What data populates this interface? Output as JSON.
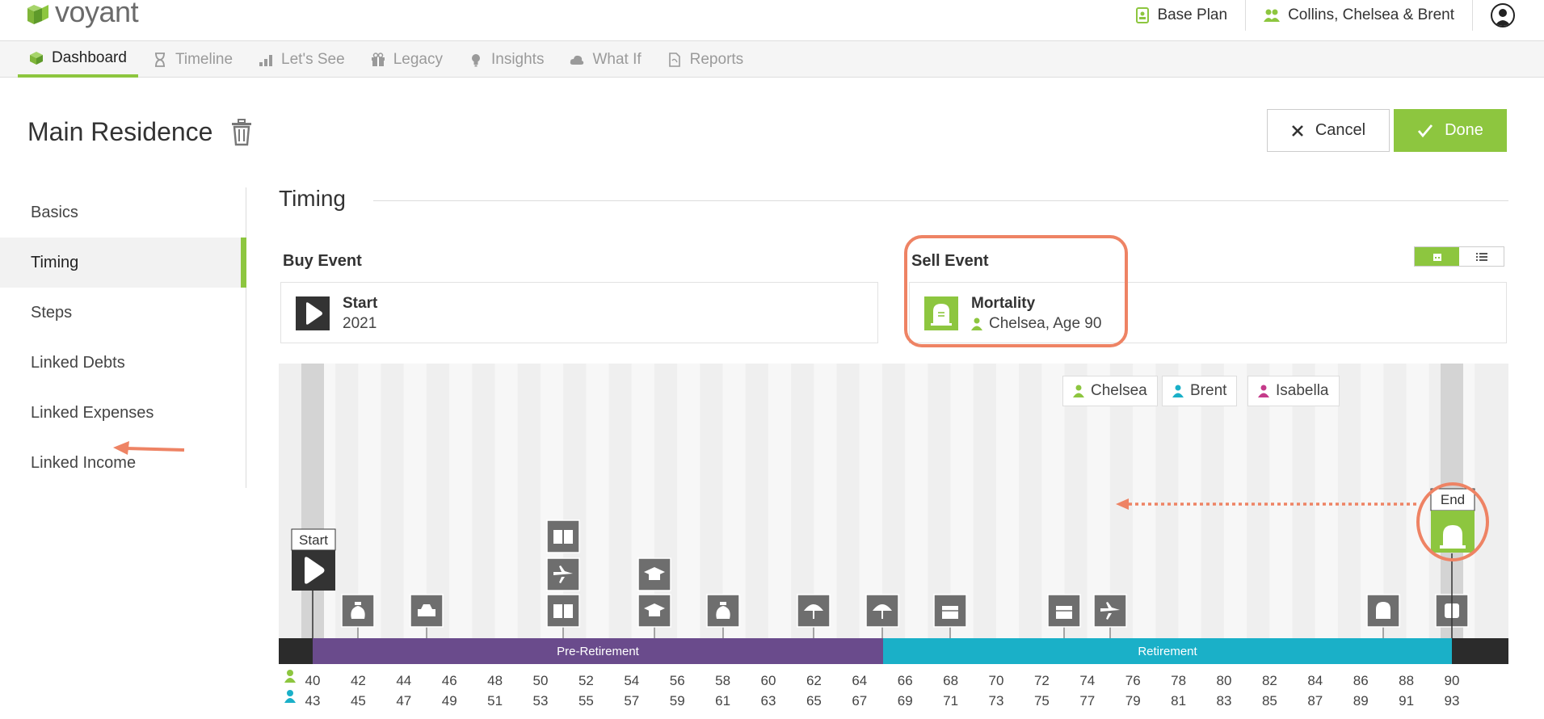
{
  "header": {
    "logo_text": "voyant",
    "plan": "Base Plan",
    "client": "Collins, Chelsea & Brent"
  },
  "tabs": [
    {
      "label": "Dashboard",
      "icon": "cube-icon"
    },
    {
      "label": "Timeline",
      "icon": "hourglass-icon"
    },
    {
      "label": "Let's See",
      "icon": "bar-chart-icon"
    },
    {
      "label": "Legacy",
      "icon": "gift-icon"
    },
    {
      "label": "Insights",
      "icon": "lightbulb-icon"
    },
    {
      "label": "What If",
      "icon": "cloud-icon"
    },
    {
      "label": "Reports",
      "icon": "document-icon"
    }
  ],
  "page": {
    "title": "Main Residence",
    "cancel_label": "Cancel",
    "done_label": "Done"
  },
  "leftnav": [
    {
      "label": "Basics"
    },
    {
      "label": "Timing"
    },
    {
      "label": "Steps"
    },
    {
      "label": "Linked Debts"
    },
    {
      "label": "Linked Expenses"
    },
    {
      "label": "Linked Income"
    }
  ],
  "timing": {
    "title": "Timing",
    "buy_label": "Buy Event",
    "buy_name": "Start",
    "buy_year": "2021",
    "sell_label": "Sell Event",
    "sell_name": "Mortality",
    "sell_sub": "Chelsea, Age 90"
  },
  "timeline": {
    "legend": [
      {
        "name": "Chelsea",
        "color": "#8dc63f"
      },
      {
        "name": "Brent",
        "color": "#1ab0c8"
      },
      {
        "name": "Isabella",
        "color": "#c43b8a"
      }
    ],
    "start_label": "Start",
    "end_label": "End",
    "phases": [
      {
        "label": "Pre-Retirement",
        "color": "#6a4b8c"
      },
      {
        "label": "Retirement",
        "color": "#1ab0c8"
      }
    ],
    "chelsea_ages": [
      "40",
      "42",
      "44",
      "46",
      "48",
      "50",
      "52",
      "54",
      "56",
      "58",
      "60",
      "62",
      "64",
      "66",
      "68",
      "70",
      "72",
      "74",
      "76",
      "78",
      "80",
      "82",
      "84",
      "86",
      "88",
      "90"
    ],
    "brent_ages": [
      "43",
      "45",
      "47",
      "49",
      "51",
      "53",
      "55",
      "57",
      "59",
      "61",
      "63",
      "65",
      "67",
      "69",
      "71",
      "73",
      "75",
      "77",
      "79",
      "81",
      "83",
      "85",
      "87",
      "89",
      "91",
      "93"
    ]
  }
}
